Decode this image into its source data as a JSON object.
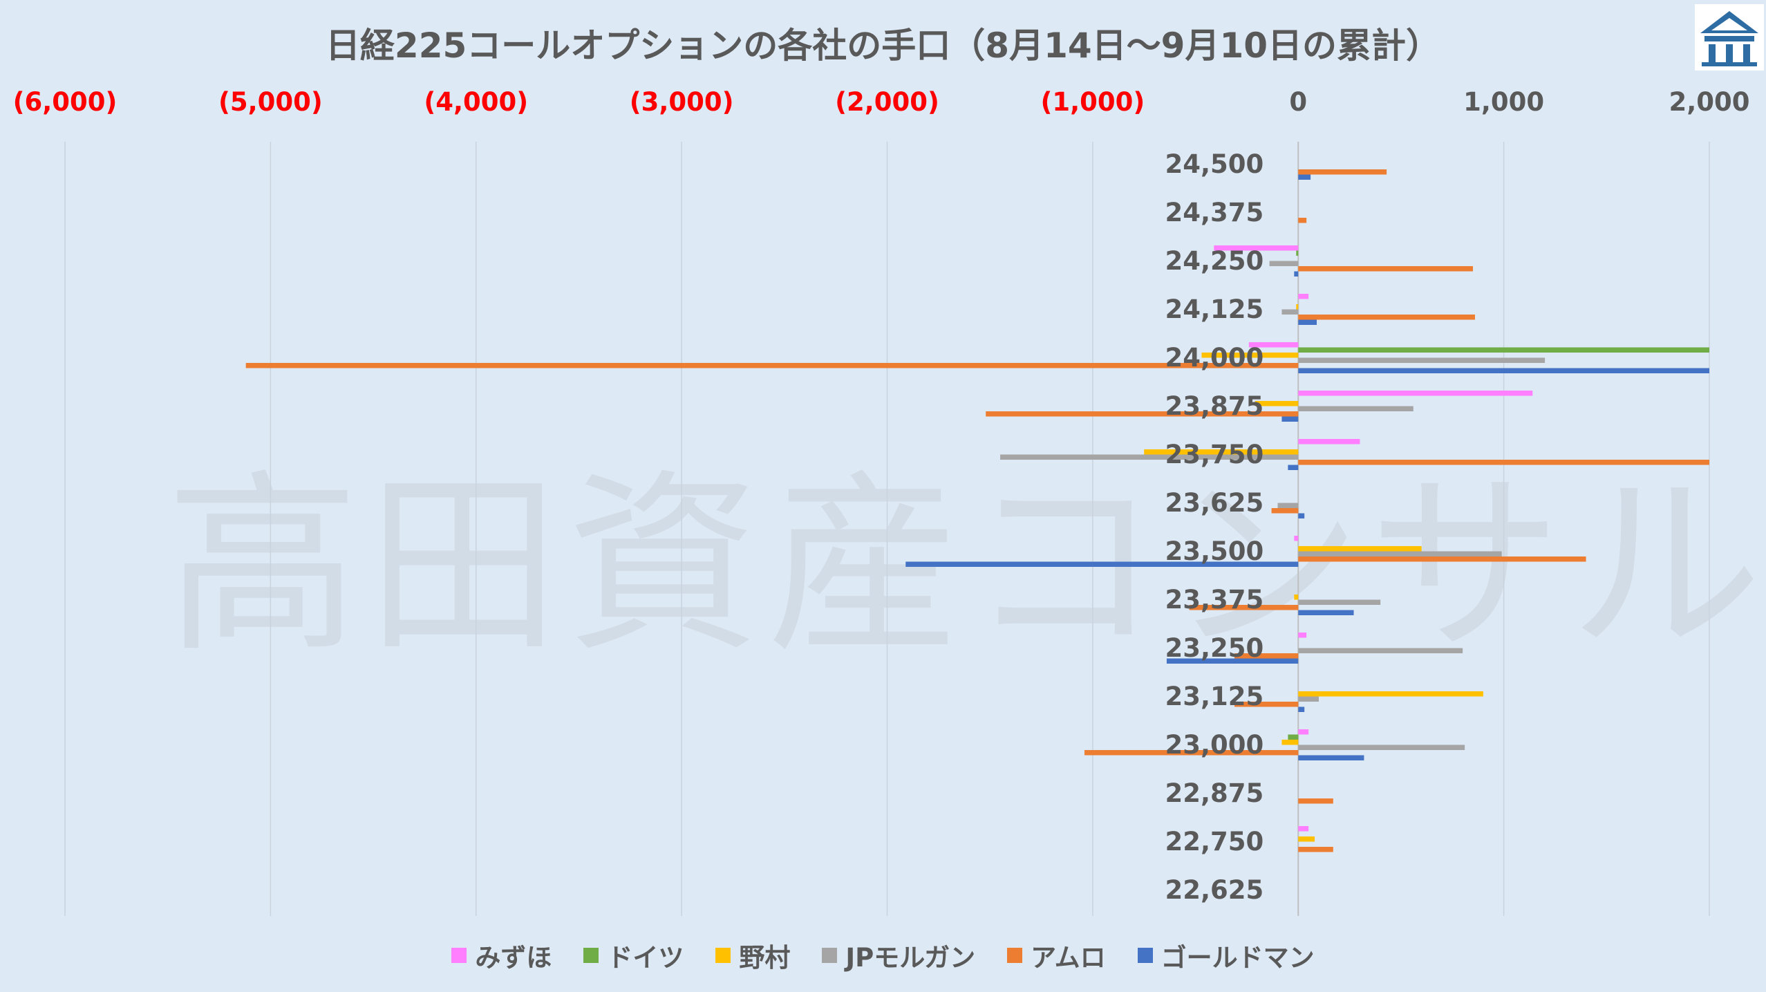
{
  "watermark": "高田資産コンサル",
  "logo": {
    "icon": "building-logo-icon",
    "color": "#2e6da4"
  },
  "chart_data": {
    "type": "bar",
    "orientation": "horizontal",
    "title": "日経225コールオプションの各社の手口（8月14日～9月10日の累計）",
    "xlabel": "",
    "ylabel": "",
    "xlim": [
      -6000,
      2000
    ],
    "x_ticks": [
      -6000,
      -5000,
      -4000,
      -3000,
      -2000,
      -1000,
      0,
      1000,
      2000
    ],
    "x_tick_labels": [
      "(6,000)",
      "(5,000)",
      "(4,000)",
      "(3,000)",
      "(2,000)",
      "(1,000)",
      "0",
      "1,000",
      "2,000"
    ],
    "negative_tick_color": "#ff0000",
    "positive_tick_color": "#595959",
    "x_axis_position": "top",
    "grid": true,
    "legend_position": "bottom",
    "categories": [
      "24,500",
      "24,375",
      "24,250",
      "24,125",
      "24,000",
      "23,875",
      "23,750",
      "23,625",
      "23,500",
      "23,375",
      "23,250",
      "23,125",
      "23,000",
      "22,875",
      "22,750",
      "22,625"
    ],
    "series": [
      {
        "name": "みずほ",
        "color": "#ff7fff",
        "values": [
          0,
          0,
          -410,
          50,
          -240,
          1140,
          300,
          0,
          -20,
          0,
          40,
          0,
          50,
          0,
          50,
          0
        ]
      },
      {
        "name": "ドイツ",
        "color": "#70ad47",
        "values": [
          0,
          0,
          -10,
          0,
          2000,
          0,
          0,
          0,
          0,
          0,
          0,
          0,
          -50,
          0,
          0,
          0
        ]
      },
      {
        "name": "野村",
        "color": "#ffc000",
        "values": [
          0,
          0,
          0,
          -10,
          -470,
          -210,
          -750,
          0,
          600,
          -20,
          0,
          900,
          -80,
          0,
          80,
          0
        ]
      },
      {
        "name": "JPモルガン",
        "color": "#a5a5a5",
        "values": [
          0,
          0,
          -140,
          -80,
          1200,
          560,
          -1450,
          -100,
          990,
          400,
          800,
          100,
          810,
          0,
          0,
          0
        ]
      },
      {
        "name": "アムロ",
        "color": "#ed7d31",
        "values": [
          430,
          40,
          850,
          860,
          -5120,
          -1520,
          2000,
          -130,
          1400,
          -530,
          -310,
          -310,
          -1040,
          170,
          170,
          0
        ]
      },
      {
        "name": "ゴールドマン",
        "color": "#4472c4",
        "values": [
          60,
          0,
          -20,
          90,
          2000,
          -80,
          -50,
          30,
          -1910,
          270,
          -640,
          30,
          320,
          0,
          0,
          0
        ]
      }
    ]
  }
}
